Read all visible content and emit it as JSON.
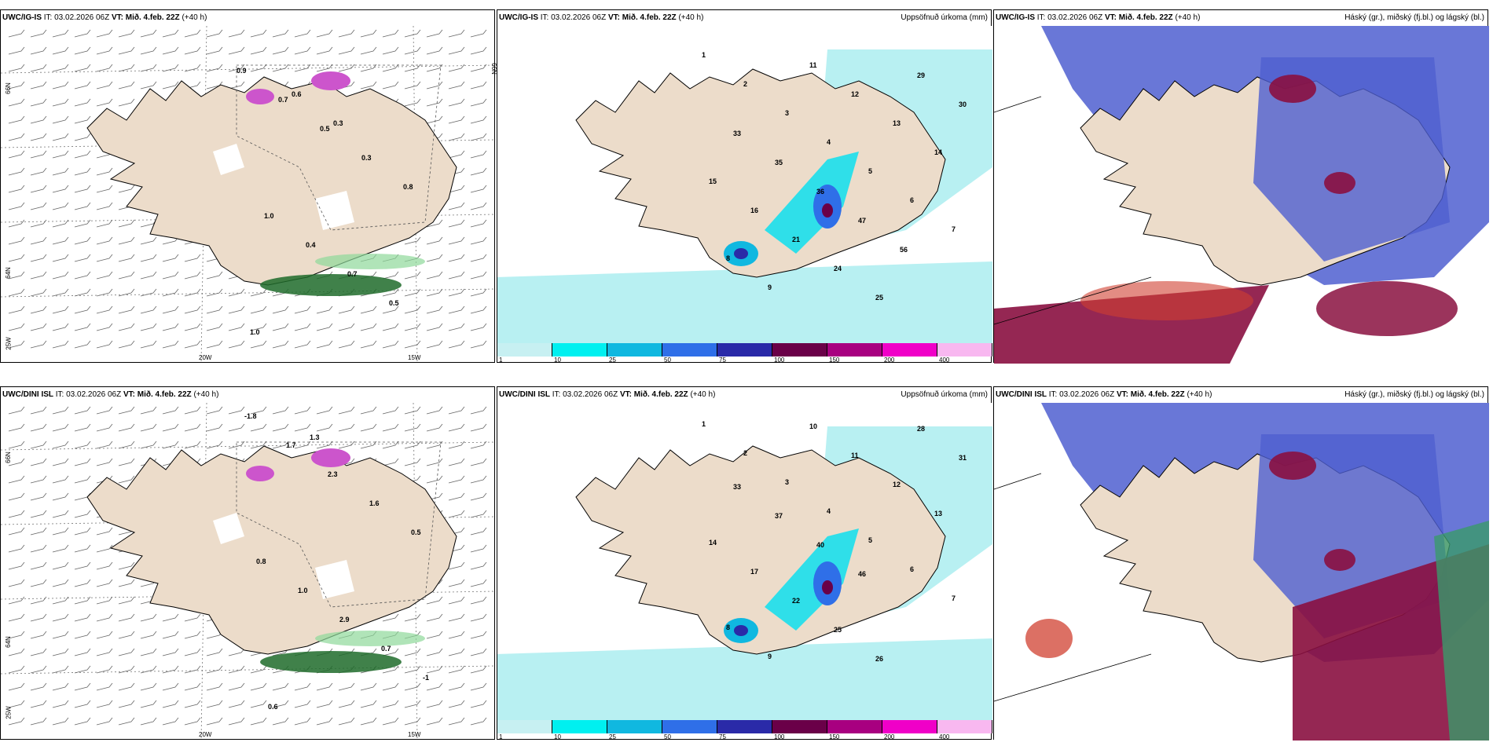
{
  "panels": [
    {
      "id": "p1",
      "model": "UWC/IG-IS",
      "it_label": "IT:",
      "it_value": "03.02.2026 06Z",
      "vt_label": "VT:",
      "vt_value": "Mið. 4.feb. 22Z",
      "lead": "(+40 h)",
      "right_label": "",
      "labels": [
        "0.9",
        "0.7",
        "0.5",
        "0.3",
        "0.8",
        "1.0",
        "0.4",
        "0.7",
        "0.5",
        "1.0",
        "0.6",
        "0.3"
      ]
    },
    {
      "id": "p2",
      "model": "UWC/IG-IS",
      "it_label": "IT:",
      "it_value": "03.02.2026 06Z",
      "vt_label": "VT:",
      "vt_value": "Mið. 4.feb. 22Z",
      "lead": "(+40 h)",
      "right_label": "Uppsöfnuð úrkoma (mm)",
      "labels": [
        "1",
        "2",
        "3",
        "4",
        "5",
        "6",
        "7",
        "8",
        "9",
        "11",
        "12",
        "13",
        "14",
        "15",
        "16",
        "21",
        "24",
        "25",
        "29",
        "30",
        "33",
        "35",
        "36",
        "47",
        "56"
      ]
    },
    {
      "id": "p3",
      "model": "UWC/IG-IS",
      "it_label": "IT:",
      "it_value": "03.02.2026 06Z",
      "vt_label": "VT:",
      "vt_value": "Mið. 4.feb. 22Z",
      "lead": "(+40 h)",
      "right_label": "Háský (gr.), miðský (fj.bl.) og lágský (bl.)",
      "labels": []
    },
    {
      "id": "p4",
      "model": "UWC/DINI ISL",
      "it_label": "IT:",
      "it_value": "03.02.2026 06Z",
      "vt_label": "VT:",
      "vt_value": "Mið. 4.feb. 22Z",
      "lead": "(+40 h)",
      "right_label": "",
      "labels": [
        "-1.8",
        "1.7",
        "2.3",
        "1.6",
        "0.5",
        "0.8",
        "1.0",
        "2.9",
        "0.7",
        "-1",
        "0.6",
        "1.3"
      ]
    },
    {
      "id": "p5",
      "model": "UWC/DINI ISL",
      "it_label": "IT:",
      "it_value": "03.02.2026 06Z",
      "vt_label": "VT:",
      "vt_value": "Mið. 4.feb. 22Z",
      "lead": "(+40 h)",
      "right_label": "Uppsöfnuð úrkoma (mm)",
      "labels": [
        "1",
        "2",
        "3",
        "4",
        "5",
        "6",
        "7",
        "8",
        "9",
        "10",
        "11",
        "12",
        "13",
        "14",
        "17",
        "22",
        "25",
        "26",
        "28",
        "31",
        "33",
        "37",
        "40",
        "46"
      ]
    },
    {
      "id": "p6",
      "model": "UWC/DINI ISL",
      "it_label": "IT:",
      "it_value": "03.02.2026 06Z",
      "vt_label": "VT:",
      "vt_value": "Mið. 4.feb. 22Z",
      "lead": "(+40 h)",
      "right_label": "Háský (gr.), miðský (fj.bl.) og lágský (bl.)",
      "labels": []
    }
  ],
  "axis_labels": {
    "lat66": "66N",
    "lat64": "64N",
    "lat65": "65N",
    "lon20": "20W",
    "lon15": "15W",
    "lon25": "25W"
  },
  "colorbar": {
    "ticks": [
      "1",
      "10",
      "25",
      "50",
      "75",
      "100",
      "150",
      "200",
      "400"
    ],
    "colors": [
      "#c7f0f2",
      "#00f0f0",
      "#10b8e0",
      "#2f6fe8",
      "#2a2aa8",
      "#6a0048",
      "#a80080",
      "#f000c8",
      "#f8b8f0"
    ]
  },
  "colors": {
    "land": "#ecdcca",
    "water_precip": "#b8f0f2",
    "cloud_high": "#8a1040",
    "cloud_mid": "#4f5fd0",
    "cloud_low": "#d04030"
  }
}
